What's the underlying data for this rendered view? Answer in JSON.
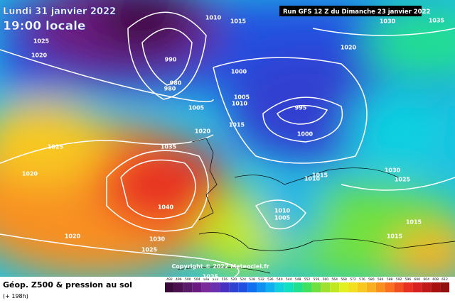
{
  "header": {
    "date": "Lundi 31 janvier 2022",
    "time": "19:00 locale",
    "run": "Run GFS 12 Z du Dimanche 23 janvier 2022"
  },
  "map": {
    "copyright": "Copyright © 2022 Meteociel.fr",
    "pressure_labels": [
      1025,
      1020,
      1025,
      1020,
      1035,
      1040,
      1030,
      1025,
      1020,
      1020,
      1005,
      1015,
      1010,
      1005,
      1000,
      995,
      1000,
      1020,
      1030,
      1035,
      1015,
      1010,
      1030,
      1025,
      1015,
      1015,
      1015,
      1010,
      1005,
      1010,
      980,
      980,
      990,
      1025
    ]
  },
  "footer": {
    "title": "Géop. Z500 & pression au sol",
    "lead": "(+ 198h)"
  },
  "colorbar": {
    "ticks": [
      492,
      496,
      500,
      504,
      508,
      512,
      516,
      520,
      524,
      528,
      532,
      536,
      540,
      544,
      548,
      552,
      556,
      560,
      564,
      568,
      572,
      576,
      580,
      584,
      588,
      592,
      596,
      600,
      604,
      608,
      612
    ],
    "colors": [
      "#3a0a3a",
      "#4a1050",
      "#5a1a6a",
      "#6a1a80",
      "#7a2a9a",
      "#6a30b0",
      "#4a30c0",
      "#3040d0",
      "#2050e0",
      "#1070f0",
      "#1090f0",
      "#10b0f0",
      "#10d0e0",
      "#10e0c0",
      "#20e090",
      "#40e060",
      "#70e040",
      "#a0e030",
      "#c0e820",
      "#e0f020",
      "#f0e020",
      "#f8c820",
      "#f8b020",
      "#f89020",
      "#f87020",
      "#f05020",
      "#e83020",
      "#d82020",
      "#c01818",
      "#a81010",
      "#901010"
    ]
  }
}
